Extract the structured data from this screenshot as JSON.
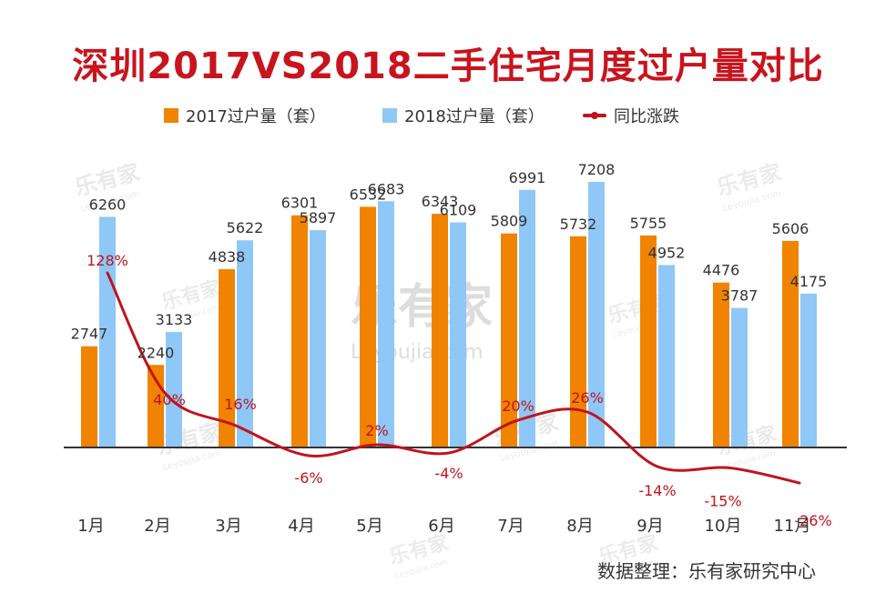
{
  "title": "深圳2017VS2018二手住宅月度过户量对比",
  "legend": {
    "series_2017": "2017过户量（套）",
    "series_2018": "2018过户量（套）",
    "yoy": "同比涨跌"
  },
  "source": "数据整理：乐有家研究中心",
  "watermark": {
    "brand": "乐有家",
    "domain": "Leyoujia.com"
  },
  "colors": {
    "bar_2017": "#f08300",
    "bar_2018": "#8fc7f7",
    "yoy_line": "#c0141c",
    "title": "#c8141e",
    "axis": "#333333"
  },
  "chart_data": {
    "type": "bar",
    "categories": [
      "1月",
      "2月",
      "3月",
      "4月",
      "5月",
      "6月",
      "7月",
      "8月",
      "9月",
      "10月",
      "11月"
    ],
    "series": [
      {
        "name": "2017过户量（套）",
        "values": [
          2747,
          2240,
          4838,
          6301,
          6532,
          6343,
          5809,
          5732,
          5755,
          4476,
          5606
        ]
      },
      {
        "name": "2018过户量（套）",
        "values": [
          6260,
          3133,
          5622,
          5897,
          6683,
          6109,
          6991,
          7208,
          4952,
          3787,
          4175
        ]
      }
    ],
    "line_series": {
      "name": "同比涨跌",
      "values": [
        128,
        40,
        16,
        -6,
        2,
        -4,
        20,
        26,
        -14,
        -15,
        -26
      ],
      "labels": [
        "128%",
        "40%",
        "16%",
        "-6%",
        "2%",
        "-4%",
        "20%",
        "26%",
        "-14%",
        "-15%",
        "-26%"
      ]
    },
    "legend_position": "top",
    "grid": false
  }
}
